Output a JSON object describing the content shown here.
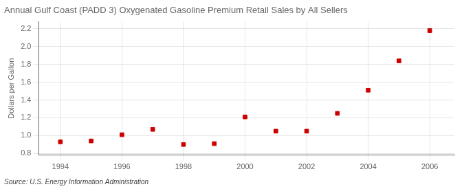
{
  "chart_data": {
    "type": "scatter",
    "title": "Annual Gulf Coast (PADD 3) Oxygenated Gasoline Premium Retail Sales by All Sellers",
    "ylabel": "Dollars per Gallon",
    "annotation": "Source: U.S. Energy Information Administration",
    "x": [
      1994,
      1995,
      1996,
      1997,
      1998,
      1999,
      2000,
      2001,
      2002,
      2003,
      2004,
      2005,
      2006
    ],
    "values": [
      0.93,
      0.94,
      1.01,
      1.07,
      0.9,
      0.91,
      1.21,
      1.05,
      1.05,
      1.25,
      1.51,
      1.84,
      2.18
    ],
    "color": "#cc0000",
    "marker": "square",
    "xlim": [
      1993.3,
      2006.8
    ],
    "ylim": [
      0.78,
      2.28
    ],
    "xticks": [
      1994,
      1996,
      1998,
      2000,
      2002,
      2004,
      2006
    ],
    "yticks": [
      0.8,
      {
        "value": 1.0,
        "label": "1.0"
      },
      1.2,
      1.4,
      1.6,
      1.8,
      {
        "value": 2.0,
        "label": "2.0"
      },
      2.2
    ],
    "grid": true
  }
}
